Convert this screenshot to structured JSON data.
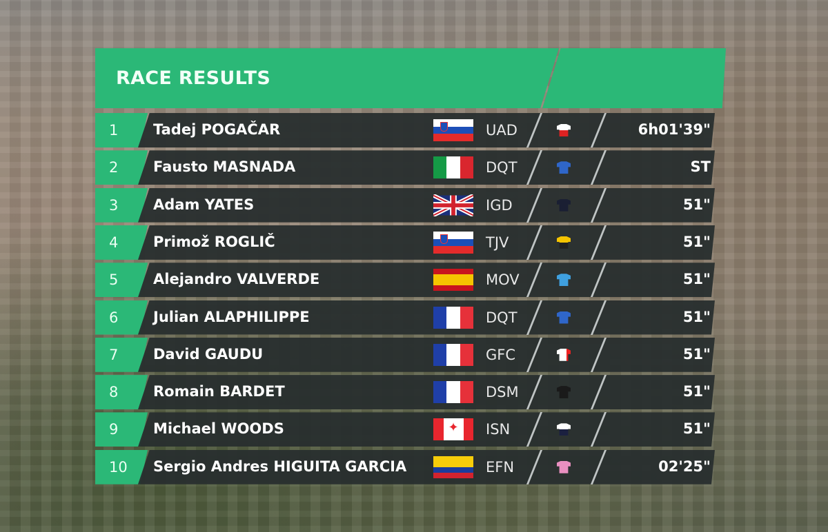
{
  "header": {
    "title": "RACE RESULTS"
  },
  "colors": {
    "accent_green": "#2bb877",
    "row_bg": "#2e3434"
  },
  "results": [
    {
      "rank": "1",
      "name": "Tadej POGAČAR",
      "flag": "slovenia",
      "team": "UAD",
      "jersey": "uae-team-emirates-jersey",
      "time": "6h01'39\""
    },
    {
      "rank": "2",
      "name": "Fausto MASNADA",
      "flag": "italy",
      "team": "DQT",
      "jersey": "deceuninck-quickstep-jersey",
      "time": "ST"
    },
    {
      "rank": "3",
      "name": "Adam YATES",
      "flag": "united-kingdom",
      "team": "IGD",
      "jersey": "ineos-grenadiers-jersey",
      "time": "51\""
    },
    {
      "rank": "4",
      "name": "Primož ROGLIČ",
      "flag": "slovenia",
      "team": "TJV",
      "jersey": "jumbo-visma-jersey",
      "time": "51\""
    },
    {
      "rank": "5",
      "name": "Alejandro VALVERDE",
      "flag": "spain",
      "team": "MOV",
      "jersey": "movistar-jersey",
      "time": "51\""
    },
    {
      "rank": "6",
      "name": "Julian ALAPHILIPPE",
      "flag": "france",
      "team": "DQT",
      "jersey": "deceuninck-quickstep-jersey",
      "time": "51\""
    },
    {
      "rank": "7",
      "name": "David GAUDU",
      "flag": "france",
      "team": "GFC",
      "jersey": "groupama-fdj-jersey",
      "time": "51\""
    },
    {
      "rank": "8",
      "name": "Romain BARDET",
      "flag": "france",
      "team": "DSM",
      "jersey": "team-dsm-jersey",
      "time": "51\""
    },
    {
      "rank": "9",
      "name": "Michael WOODS",
      "flag": "canada",
      "team": "ISN",
      "jersey": "israel-start-up-nation-jersey",
      "time": "51\""
    },
    {
      "rank": "10",
      "name": "Sergio Andres HIGUITA GARCIA",
      "flag": "colombia",
      "team": "EFN",
      "jersey": "ef-nippo-jersey",
      "time": "02'25\""
    }
  ]
}
